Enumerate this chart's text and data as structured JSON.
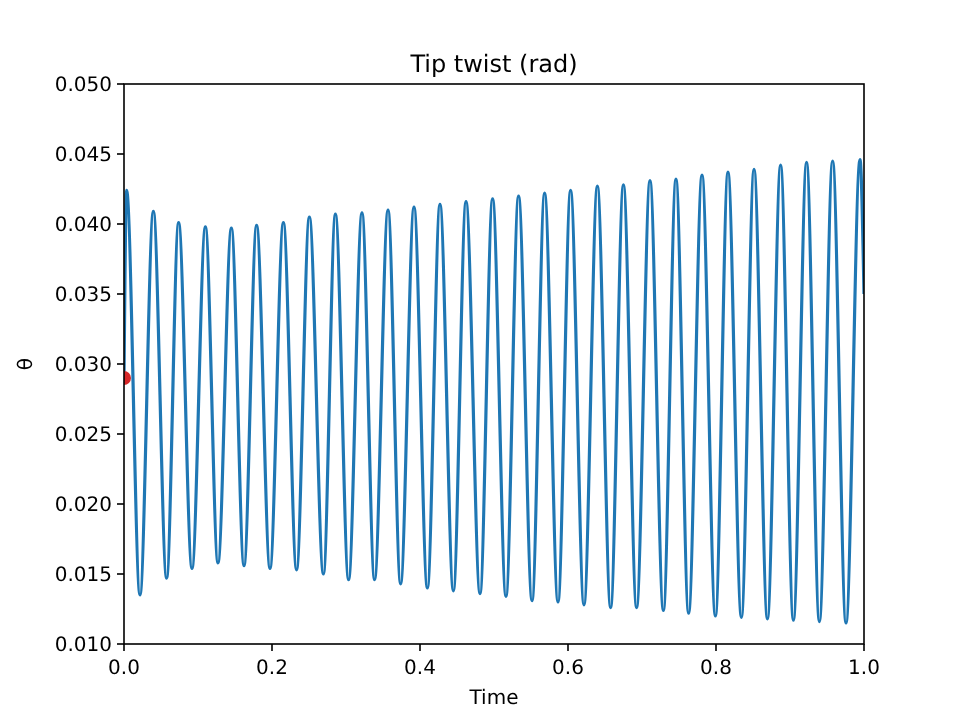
{
  "chart_data": {
    "type": "line",
    "title": "Tip twist (rad)",
    "xlabel": "Time",
    "ylabel": "θ",
    "xlim": [
      0,
      1
    ],
    "xticks": [
      {
        "value": 0,
        "label": "0.0"
      },
      {
        "value": 0.2,
        "label": "0.2"
      },
      {
        "value": 0.4,
        "label": "0.4"
      },
      {
        "value": 0.6,
        "label": "0.6"
      },
      {
        "value": 0.8,
        "label": "0.8"
      },
      {
        "value": 1,
        "label": "1.0"
      }
    ],
    "ylim": [
      0.01,
      0.05
    ],
    "yticks": [
      {
        "value": 0.01,
        "label": "0.010"
      },
      {
        "value": 0.015,
        "label": "0.015"
      },
      {
        "value": 0.02,
        "label": "0.020"
      },
      {
        "value": 0.025,
        "label": "0.025"
      },
      {
        "value": 0.03,
        "label": "0.030"
      },
      {
        "value": 0.035,
        "label": "0.035"
      },
      {
        "value": 0.04,
        "label": "0.040"
      },
      {
        "value": 0.045,
        "label": "0.045"
      },
      {
        "value": 0.05,
        "label": "0.050"
      }
    ],
    "grid": false,
    "line_style": "solid",
    "series": [
      {
        "color": "#1f77b4",
        "marker": "none",
        "x": [
          0,
          0.0035,
          0.0216,
          0.0397,
          0.0576,
          0.0738,
          0.0919,
          0.11,
          0.127,
          0.1451,
          0.1622,
          0.1792,
          0.1973,
          0.2154,
          0.2332,
          0.2505,
          0.2695,
          0.2857,
          0.3035,
          0.3216,
          0.3386,
          0.3568,
          0.3738,
          0.3919,
          0.41,
          0.427,
          0.4451,
          0.4622,
          0.4811,
          0.4981,
          0.5162,
          0.5332,
          0.5514,
          0.5684,
          0.5865,
          0.6035,
          0.6216,
          0.6397,
          0.6576,
          0.6749,
          0.6927,
          0.7108,
          0.7289,
          0.7459,
          0.763,
          0.7811,
          0.7992,
          0.8162,
          0.8343,
          0.8514,
          0.8695,
          0.8873,
          0.9046,
          0.9224,
          0.9397,
          0.9576,
          0.9757,
          0.9946,
          1
        ],
        "values": [
          0.029,
          0.0424,
          0.0135,
          0.0409,
          0.0147,
          0.0401,
          0.0154,
          0.0398,
          0.0158,
          0.0397,
          0.0156,
          0.0399,
          0.0154,
          0.0401,
          0.0153,
          0.0405,
          0.015,
          0.0407,
          0.0146,
          0.0408,
          0.0146,
          0.041,
          0.0143,
          0.0412,
          0.014,
          0.0414,
          0.0138,
          0.0416,
          0.0136,
          0.0418,
          0.0134,
          0.042,
          0.0131,
          0.0422,
          0.013,
          0.0424,
          0.0128,
          0.0427,
          0.0126,
          0.0428,
          0.0126,
          0.0431,
          0.0124,
          0.0432,
          0.0122,
          0.0435,
          0.012,
          0.0437,
          0.0119,
          0.0439,
          0.0118,
          0.0442,
          0.0117,
          0.0444,
          0.0116,
          0.0445,
          0.0115,
          0.0446,
          0.035
        ]
      },
      {
        "type": "scatter",
        "color": "#d62728",
        "marker": "circle",
        "x": [
          0
        ],
        "values": [
          0.029
        ]
      }
    ]
  }
}
